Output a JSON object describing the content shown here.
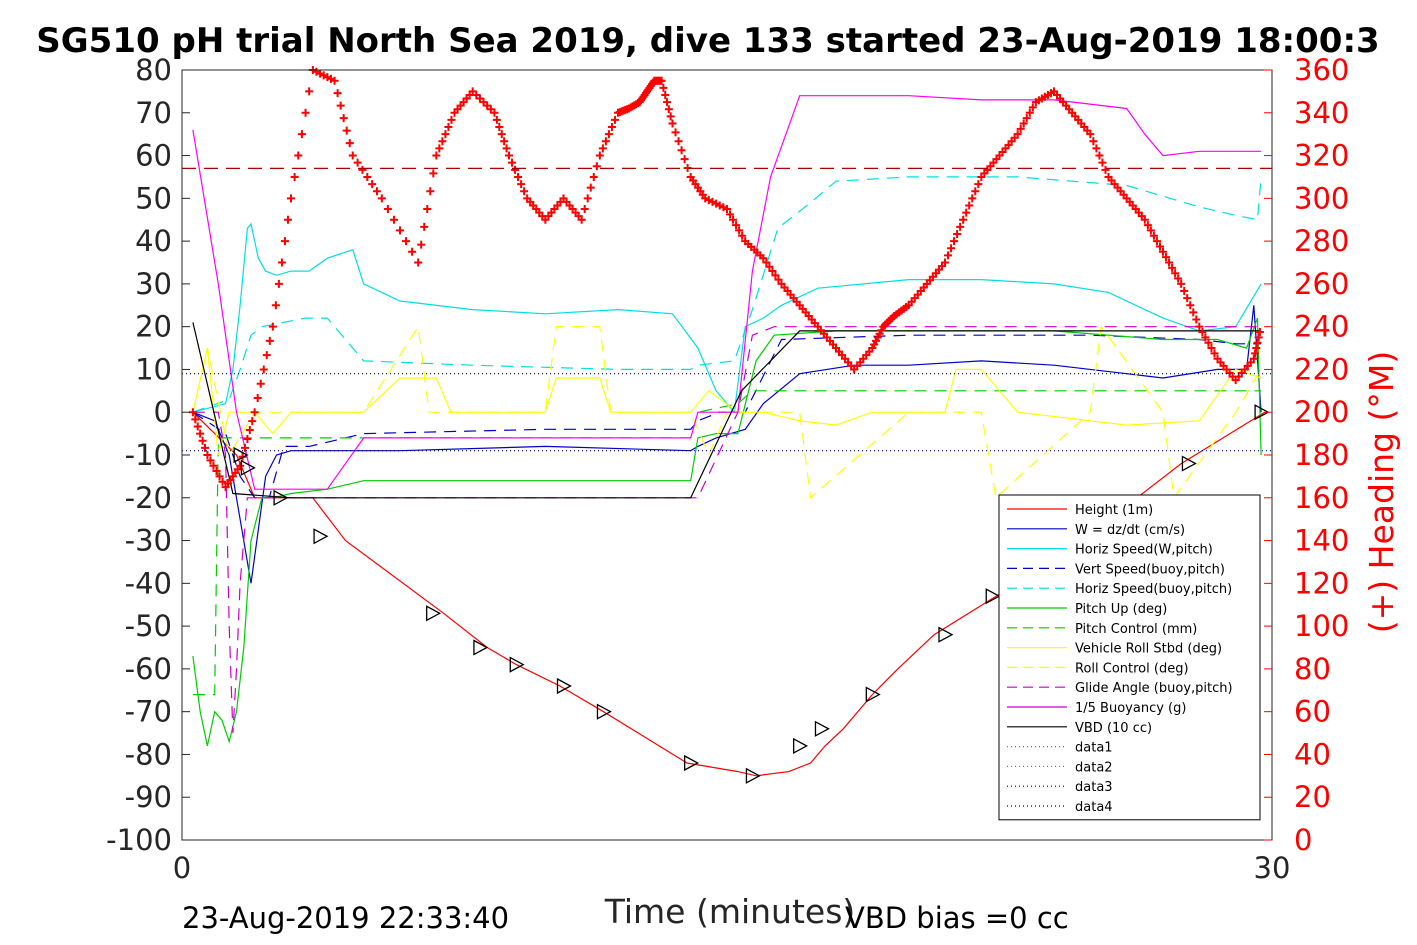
{
  "title": "SG510 pH trial North Sea 2019, dive 133 started 23-Aug-2019 18:00:3",
  "xlabel": "Time (minutes)",
  "ylabel_right": "(+) Heading (°M)",
  "footer_left": "23-Aug-2019 22:33:40",
  "footer_right": "VBD bias =0 cc",
  "colors": {
    "heading": "#ff0000",
    "axis": "#262626"
  },
  "chart_data": {
    "type": "line",
    "xlim": [
      0,
      30
    ],
    "ylim": [
      -100,
      80
    ],
    "ylim_right": [
      0,
      360
    ],
    "x_ticks": [
      "0",
      "30"
    ],
    "y_ticks": [
      "80",
      "70",
      "60",
      "50",
      "40",
      "30",
      "20",
      "10",
      "0",
      "-10",
      "-20",
      "-30",
      "-40",
      "-50",
      "-60",
      "-70",
      "-80",
      "-90",
      "-100"
    ],
    "y_ticks_right": [
      "360",
      "340",
      "320",
      "300",
      "280",
      "260",
      "240",
      "220",
      "200",
      "180",
      "160",
      "140",
      "120",
      "100",
      "80",
      "60",
      "40",
      "20",
      "0"
    ],
    "grid": false,
    "legend_position": "bottom-right",
    "legend": [
      {
        "label": "Height (1m)",
        "color": "#ff0000",
        "dash": "solid"
      },
      {
        "label": "W = dz/dt (cm/s)",
        "color": "#0000cc",
        "dash": "solid"
      },
      {
        "label": "Horiz Speed(W,pitch)",
        "color": "#00e0e0",
        "dash": "solid"
      },
      {
        "label": "Vert Speed(buoy,pitch)",
        "color": "#0000cc",
        "dash": "dashed"
      },
      {
        "label": "Horiz Speed(buoy,pitch)",
        "color": "#00e0e0",
        "dash": "dashed"
      },
      {
        "label": "Pitch Up (deg)",
        "color": "#00cc00",
        "dash": "solid"
      },
      {
        "label": "Pitch Control (mm)",
        "color": "#00cc00",
        "dash": "dashed"
      },
      {
        "label": "Vehicle Roll Stbd (deg)",
        "color": "#ffff00",
        "dash": "solid"
      },
      {
        "label": "Roll Control (deg)",
        "color": "#ffff00",
        "dash": "dashed"
      },
      {
        "label": "Glide Angle (buoy,pitch)",
        "color": "#cc00cc",
        "dash": "dashed"
      },
      {
        "label": "1/5 Buoyancy (g)",
        "color": "#cc00cc",
        "dash": "solid"
      },
      {
        "label": "VBD (10 cc)",
        "color": "#000000",
        "dash": "solid"
      },
      {
        "label": "data1",
        "color": "#00cc00",
        "dash": "dotted"
      },
      {
        "label": "data2",
        "color": "#00cc00",
        "dash": "dotted"
      },
      {
        "label": "data3",
        "color": "#000080",
        "dash": "dotted"
      },
      {
        "label": "data4",
        "color": "#000080",
        "dash": "dotted"
      }
    ],
    "series": [
      {
        "key": "height",
        "x": [
          0.3,
          1.5,
          2.0,
          2.7,
          3.6,
          4.5,
          7.2,
          8.4,
          9.2,
          10.4,
          11.6,
          13.9,
          15.3,
          15.8,
          16.7,
          17.3,
          17.7,
          18.2,
          19.0,
          19.7,
          20.7,
          22.6,
          24.3,
          27.5,
          29.8
        ],
        "y": [
          0,
          -10,
          -20,
          -20,
          -20,
          -30,
          -47,
          -55,
          -59,
          -64,
          -70,
          -82,
          -84,
          -85,
          -84,
          -82,
          -78,
          -74,
          -66,
          -60,
          -52,
          -42,
          -33,
          -12,
          0
        ]
      },
      {
        "key": "w",
        "x": [
          0.3,
          0.9,
          1.3,
          1.6,
          1.9,
          2.3,
          2.6,
          3.0,
          3.5,
          4.0,
          6.0,
          10.0,
          14.0,
          14.2,
          14.7,
          15.5,
          16.0,
          17.0,
          18.5,
          20.0,
          22.0,
          24.0,
          26.0,
          27.0,
          28.5,
          29.3,
          29.5,
          29.7
        ],
        "y": [
          0,
          -2,
          -10,
          -25,
          -40,
          -15,
          -10,
          -9,
          -9,
          -9,
          -9,
          -8,
          -9,
          -8,
          -6,
          -4,
          2,
          9,
          11,
          11,
          12,
          11,
          9,
          8,
          10,
          10,
          25,
          0
        ]
      },
      {
        "key": "horiz_speed_w",
        "x": [
          0.3,
          1.2,
          1.4,
          1.6,
          1.8,
          1.9,
          2.1,
          2.3,
          2.6,
          3.0,
          3.5,
          4.0,
          4.7,
          5.0,
          6.0,
          8.0,
          10.0,
          12.0,
          13.5,
          14.2,
          14.7,
          15.2,
          15.5,
          16.0,
          16.5,
          17.5,
          20.0,
          22.0,
          24.0,
          25.5,
          27.0,
          28.0,
          29.0,
          29.7
        ],
        "y": [
          0,
          2,
          10,
          25,
          43,
          44,
          36,
          33,
          32,
          33,
          33,
          36,
          38,
          30,
          26,
          24,
          23,
          24,
          23,
          15,
          5,
          0,
          20,
          22,
          25,
          29,
          31,
          31,
          30,
          28,
          22,
          19,
          20,
          30
        ]
      },
      {
        "key": "vert_speed_buoy",
        "x": [
          0.3,
          1.2,
          1.6,
          2.0,
          2.4,
          2.8,
          3.5,
          4.0,
          5.0,
          10.0,
          14.0,
          14.2,
          14.8,
          15.5,
          16.5,
          20.0,
          25.0,
          28.0,
          29.0,
          29.7
        ],
        "y": [
          0,
          -5,
          -15,
          -20,
          -20,
          -8,
          -8,
          -7,
          -5,
          -4,
          -4,
          -2,
          0,
          0,
          17,
          18,
          18,
          17,
          16,
          16
        ]
      },
      {
        "key": "horiz_speed_buoy",
        "x": [
          0.3,
          1.3,
          1.6,
          1.9,
          2.2,
          2.8,
          3.4,
          4.0,
          5.0,
          8.0,
          12.0,
          14.0,
          14.2,
          15.2,
          15.7,
          16.4,
          17.3,
          18.0,
          20.0,
          23.0,
          26.0,
          28.0,
          29.0,
          29.6,
          29.7
        ],
        "y": [
          0,
          3,
          10,
          18,
          20,
          21,
          22,
          22,
          12,
          11,
          10,
          10,
          11,
          12,
          24,
          43,
          49,
          54,
          55,
          55,
          53,
          48,
          46,
          45,
          55
        ]
      },
      {
        "key": "pitch_up",
        "x": [
          0.3,
          0.5,
          0.7,
          0.9,
          1.1,
          1.3,
          1.5,
          1.7,
          1.9,
          2.2,
          2.5,
          3.0,
          4.0,
          5.0,
          10.0,
          14.0,
          14.2,
          14.7,
          15.3,
          15.8,
          16.3,
          18.0,
          21.0,
          24.0,
          27.0,
          28.5,
          29.3,
          29.6,
          29.7
        ],
        "y": [
          -57,
          -70,
          -78,
          -70,
          -72,
          -77,
          -70,
          -55,
          -30,
          -20,
          -20,
          -19,
          -18,
          -16,
          -16,
          -16,
          -6,
          -5,
          -5,
          12,
          18,
          19,
          19,
          19,
          17,
          17,
          15,
          22,
          -10
        ]
      },
      {
        "key": "pitch_control",
        "x": [
          0.3,
          0.9,
          1.0,
          1.3,
          1.7,
          2.0,
          2.5,
          3.0,
          5.0,
          10.0,
          14.0,
          14.2,
          15.3,
          15.7,
          16.2,
          20.0,
          25.0,
          29.0,
          29.7
        ],
        "y": [
          -66,
          -66,
          -6,
          -6,
          -6,
          -6,
          -6,
          -6,
          -6,
          -6,
          -6,
          0,
          2,
          5,
          5,
          5,
          5,
          5,
          5
        ]
      },
      {
        "key": "vehicle_roll",
        "x": [
          0.3,
          0.7,
          1.0,
          1.3,
          2.0,
          2.5,
          3.0,
          5.0,
          6.0,
          6.3,
          7.0,
          7.4,
          8.0,
          10.0,
          10.3,
          11.5,
          11.8,
          13.5,
          14.0,
          14.5,
          15.3,
          16.0,
          17.0,
          18.0,
          19.0,
          21.0,
          21.3,
          22.0,
          23.0,
          25.0,
          26.0,
          28.0,
          29.0,
          29.7
        ],
        "y": [
          0,
          15,
          -10,
          0,
          0,
          -5,
          0,
          0,
          8,
          8,
          8,
          0,
          0,
          0,
          8,
          8,
          0,
          0,
          0,
          5,
          0,
          0,
          -2,
          -3,
          0,
          0,
          10,
          10,
          0,
          -2,
          -3,
          -2,
          10,
          8
        ]
      },
      {
        "key": "roll_control",
        "x": [
          0.3,
          0.7,
          1.3,
          2.0,
          3.0,
          5.0,
          6.5,
          6.8,
          8.0,
          10.0,
          10.3,
          11.5,
          11.8,
          14.0,
          14.5,
          15.0,
          16.0,
          17.0,
          17.3,
          20.0,
          21.0,
          22.0,
          22.4,
          25.0,
          25.3,
          27.0,
          27.3,
          29.0,
          29.7
        ],
        "y": [
          0,
          15,
          -10,
          0,
          0,
          0,
          20,
          0,
          0,
          0,
          20,
          20,
          0,
          0,
          -10,
          0,
          0,
          0,
          -20,
          0,
          0,
          0,
          -20,
          0,
          20,
          0,
          -20,
          0,
          10
        ]
      },
      {
        "key": "glide_angle",
        "x": [
          0.3,
          1.0,
          1.2,
          1.3,
          1.4,
          1.5,
          1.6,
          1.8,
          2.0,
          2.5,
          3.0,
          5.0,
          10.0,
          14.0,
          14.2,
          15.3,
          15.7,
          16.3,
          20.0,
          25.0,
          29.0,
          29.7
        ],
        "y": [
          0,
          0,
          -10,
          -50,
          -75,
          -60,
          -40,
          -20,
          -20,
          -20,
          -20,
          -20,
          -20,
          -20,
          -20,
          0,
          18,
          20,
          20,
          20,
          20,
          20
        ]
      },
      {
        "key": "buoyancy_fifth",
        "x": [
          0.3,
          1.0,
          1.5,
          2.0,
          2.5,
          3.0,
          3.5,
          4.0,
          5.0,
          14.0,
          14.2,
          15.3,
          15.7,
          16.2,
          17.0,
          20.0,
          22.0,
          24.0,
          26.0,
          26.5,
          27.0,
          28.0,
          29.7
        ],
        "y": [
          66,
          30,
          0,
          -18,
          -18,
          -18,
          -18,
          -18,
          -6,
          -6,
          0,
          0,
          33,
          55,
          74,
          74,
          73,
          73,
          71,
          65,
          60,
          61,
          61
        ]
      },
      {
        "key": "vbd_tenth_cc",
        "x": [
          0.3,
          1.4,
          3.0,
          14.0,
          15.4,
          17.0,
          29.7
        ],
        "y": [
          21,
          -19,
          -20,
          -20,
          5,
          19,
          19
        ]
      },
      {
        "key": "heading_deg",
        "axis": "right",
        "x": [
          0.3,
          0.7,
          1.2,
          1.6,
          2.0,
          2.5,
          3.0,
          3.6,
          4.2,
          4.7,
          5.5,
          6.5,
          7.0,
          7.5,
          8.0,
          8.6,
          9.0,
          9.5,
          10.0,
          10.5,
          11.0,
          11.5,
          12.0,
          12.3,
          12.6,
          12.8,
          13.0,
          13.2,
          13.5,
          14.0,
          14.4,
          15.0,
          15.5,
          16.0,
          16.5,
          17.0,
          17.5,
          18.0,
          18.5,
          19.0,
          19.3,
          19.6,
          20.0,
          20.5,
          21.0,
          21.5,
          22.0,
          22.5,
          23.0,
          23.5,
          24.0,
          24.5,
          25.0,
          25.5,
          26.0,
          26.5,
          27.0,
          27.5,
          28.0,
          28.5,
          29.0,
          29.5,
          29.7
        ],
        "y": [
          200,
          180,
          165,
          175,
          200,
          240,
          300,
          360,
          355,
          320,
          300,
          270,
          320,
          340,
          350,
          340,
          320,
          300,
          290,
          300,
          290,
          320,
          340,
          342,
          345,
          350,
          355,
          355,
          335,
          310,
          300,
          295,
          280,
          272,
          260,
          250,
          240,
          230,
          220,
          230,
          240,
          245,
          250,
          260,
          270,
          290,
          310,
          320,
          330,
          345,
          350,
          340,
          330,
          310,
          300,
          290,
          275,
          260,
          240,
          225,
          215,
          225,
          240
        ]
      },
      {
        "key": "data3",
        "x": [
          0,
          30
        ],
        "y": [
          9,
          9
        ]
      },
      {
        "key": "data4",
        "x": [
          0,
          30
        ],
        "y": [
          -9,
          -9
        ]
      },
      {
        "key": "reference_line",
        "x": [
          0,
          30
        ],
        "y": [
          57,
          57
        ]
      }
    ],
    "markers": [
      {
        "x": 1.6,
        "y": -10
      },
      {
        "x": 1.8,
        "y": -13
      },
      {
        "x": 2.7,
        "y": -20
      },
      {
        "x": 3.8,
        "y": -29
      },
      {
        "x": 6.9,
        "y": -47
      },
      {
        "x": 8.2,
        "y": -55
      },
      {
        "x": 9.2,
        "y": -59
      },
      {
        "x": 10.5,
        "y": -64
      },
      {
        "x": 11.6,
        "y": -70
      },
      {
        "x": 14.0,
        "y": -82
      },
      {
        "x": 15.7,
        "y": -85
      },
      {
        "x": 17.0,
        "y": -78
      },
      {
        "x": 17.6,
        "y": -74
      },
      {
        "x": 19.0,
        "y": -66
      },
      {
        "x": 21.0,
        "y": -52
      },
      {
        "x": 22.3,
        "y": -43
      },
      {
        "x": 27.7,
        "y": -12
      },
      {
        "x": 29.7,
        "y": 0
      }
    ]
  }
}
